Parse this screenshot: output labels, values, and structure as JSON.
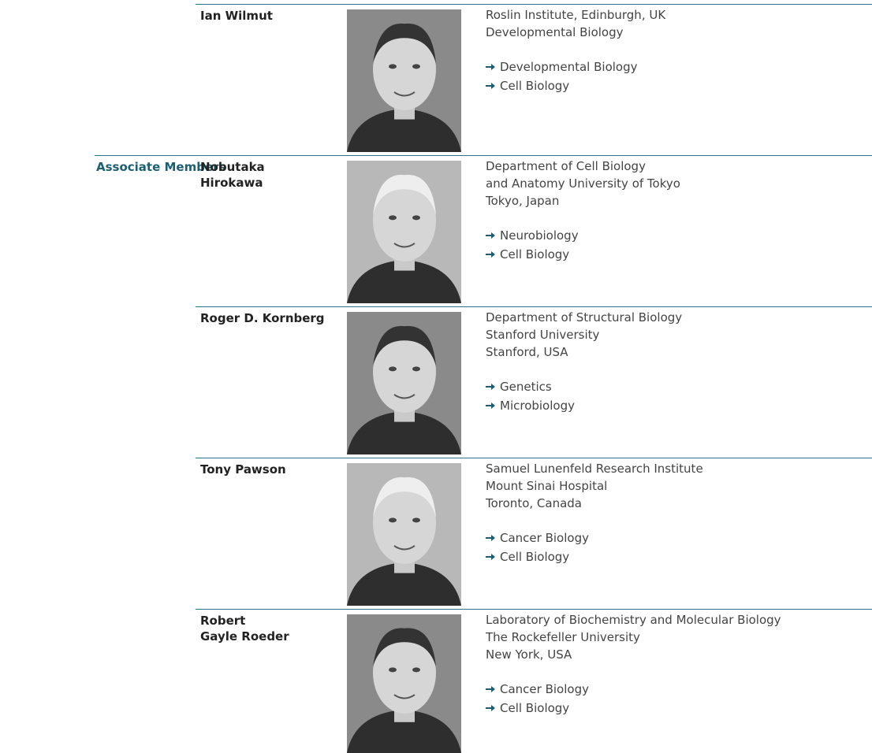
{
  "sections": [
    {
      "members": [
        {
          "name": [
            "Ian Wilmut"
          ],
          "affiliation": [
            "Roslin Institute, Edinburgh, UK",
            "Developmental Biology"
          ],
          "fields": [
            "Developmental Biology",
            "Cell Biology"
          ]
        }
      ]
    },
    {
      "label": "Associate Members",
      "members": [
        {
          "name": [
            "Nobutaka",
            "Hirokawa"
          ],
          "affiliation": [
            "Department of Cell Biology",
            "and Anatomy University of Tokyo",
            "Tokyo, Japan"
          ],
          "fields": [
            "Neurobiology",
            "Cell Biology"
          ]
        },
        {
          "name": [
            "Roger D. Kornberg"
          ],
          "affiliation": [
            "Department of Structural Biology",
            "Stanford University",
            "Stanford, USA"
          ],
          "fields": [
            "Genetics",
            "Microbiology"
          ]
        },
        {
          "name": [
            "Tony Pawson"
          ],
          "affiliation": [
            "Samuel Lunenfeld Research Institute",
            "Mount Sinai Hospital",
            "Toronto, Canada"
          ],
          "fields": [
            "Cancer Biology",
            "Cell Biology"
          ]
        },
        {
          "name": [
            "Robert",
            "Gayle Roeder"
          ],
          "affiliation": [
            "Laboratory of Biochemistry and Molecular Biology",
            "The Rockefeller University",
            "New York, USA"
          ],
          "fields": [
            "Cancer Biology",
            "Cell Biology"
          ]
        }
      ]
    }
  ]
}
